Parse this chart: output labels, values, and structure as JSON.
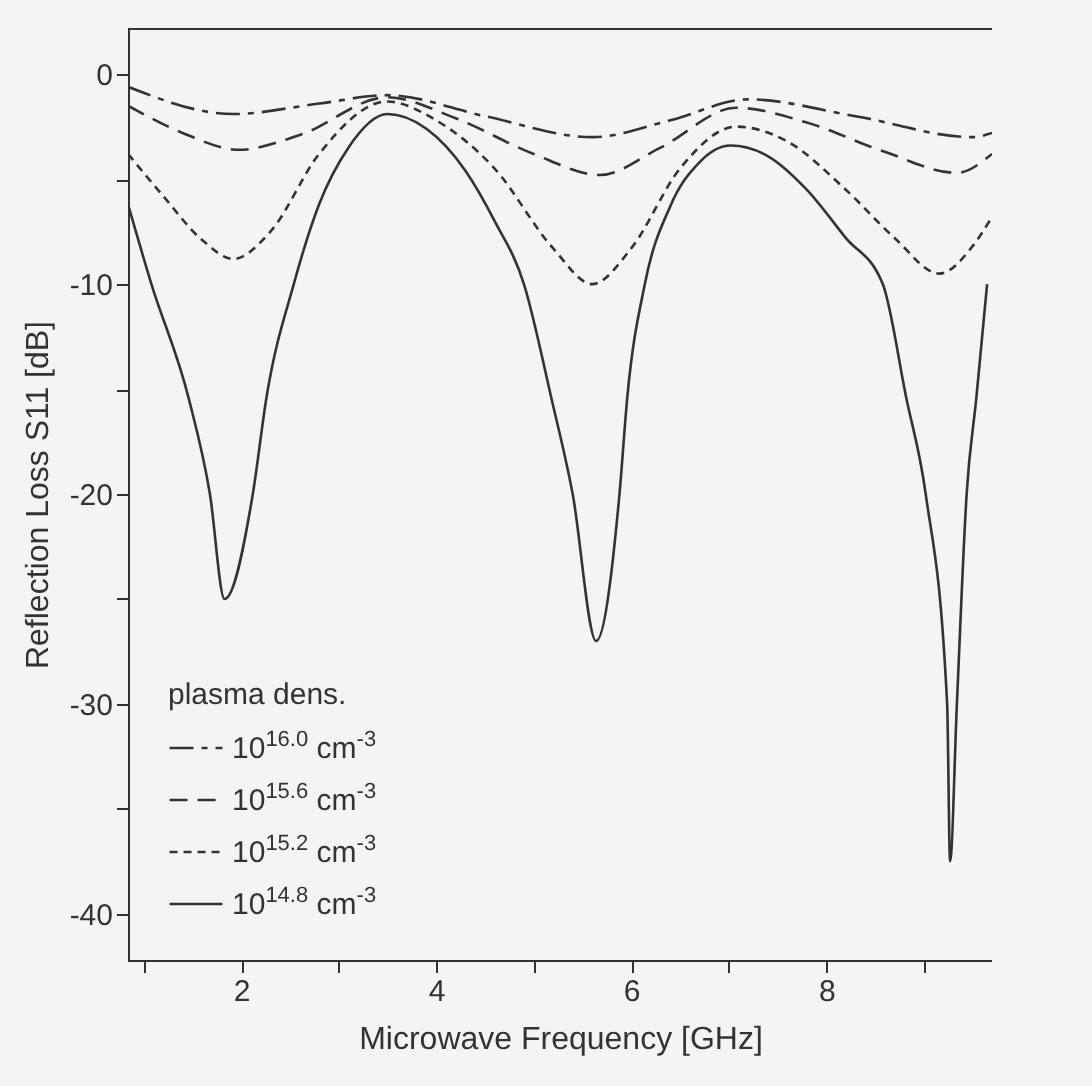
{
  "chart_data": {
    "type": "line",
    "xlabel": "Microwave Frequency [GHz]",
    "ylabel": "Reflection Loss  S11 [dB]",
    "legend_title": "plasma dens.",
    "legend": "bottom left",
    "grid": false,
    "xlim": [
      0.84,
      9.7
    ],
    "ylim": [
      -42.2,
      2.2
    ],
    "xticks": [
      {
        "value": 1,
        "label": null
      },
      2,
      {
        "value": 3,
        "label": null
      },
      4,
      {
        "value": 5,
        "label": null
      },
      6,
      {
        "value": 7,
        "label": null
      },
      8,
      {
        "value": 9,
        "label": null
      }
    ],
    "yticks": [
      -40,
      {
        "value": -35,
        "label": null
      },
      -30,
      {
        "value": -25,
        "label": null
      },
      -20,
      {
        "value": -15,
        "label": null
      },
      -10,
      {
        "value": -5,
        "label": null
      },
      0
    ],
    "series": [
      {
        "name": "10$^{16.0}$ cm$^{-3}$",
        "color": "#333333",
        "line_style": "dashdot",
        "x": [
          0.84,
          1.92,
          2.8,
          3.5,
          4.5,
          5.6,
          6.4,
          7.2,
          8.3,
          9.5,
          9.7
        ],
        "values": [
          -0.6,
          -1.9,
          -1.4,
          -1.0,
          -2.0,
          -3.0,
          -2.2,
          -1.2,
          -2.0,
          -3.0,
          -2.8
        ]
      },
      {
        "name": "10$^{15.6}$ cm$^{-3}$",
        "color": "#333333",
        "line_style": "dashed",
        "x": [
          0.84,
          1.4,
          1.98,
          2.6,
          3.5,
          4.2,
          5.0,
          5.68,
          6.3,
          7.08,
          7.8,
          8.6,
          9.34,
          9.7
        ],
        "values": [
          -1.5,
          -2.8,
          -3.6,
          -2.9,
          -1.1,
          -2.1,
          -3.8,
          -4.8,
          -3.5,
          -1.6,
          -2.3,
          -3.7,
          -4.7,
          -3.8
        ]
      },
      {
        "name": "10$^{15.2}$ cm$^{-3}$",
        "color": "#333333",
        "line_style": "dotted",
        "x": [
          0.84,
          1.2,
          1.6,
          1.92,
          2.3,
          2.8,
          3.5,
          4.0,
          4.6,
          5.2,
          5.6,
          6.0,
          6.5,
          7.08,
          7.6,
          8.2,
          8.7,
          9.16,
          9.5,
          9.7
        ],
        "values": [
          -3.8,
          -5.8,
          -7.9,
          -8.8,
          -7.5,
          -3.8,
          -1.3,
          -2.2,
          -4.5,
          -8.3,
          -10,
          -8.3,
          -4.5,
          -2.5,
          -3.2,
          -5.5,
          -7.8,
          -9.5,
          -8.2,
          -6.8
        ]
      },
      {
        "name": "10$^{14.8}$ cm$^{-3}$",
        "color": "#333333",
        "line_style": "solid",
        "x": [
          0.84,
          1.08,
          1.46,
          1.68,
          1.83,
          2.12,
          2.26,
          2.54,
          2.8,
          3.1,
          3.5,
          3.9,
          4.3,
          4.6,
          4.9,
          5.18,
          5.4,
          5.64,
          5.88,
          5.96,
          6.14,
          6.4,
          6.7,
          7.02,
          7.4,
          7.8,
          8.2,
          8.58,
          8.82,
          9.02,
          9.24,
          9.27,
          9.34,
          9.44,
          9.54,
          9.65
        ],
        "values": [
          -6.2,
          -10,
          -15.4,
          -20,
          -25,
          -20,
          -15.4,
          -10,
          -6.2,
          -3.5,
          -1.9,
          -2.6,
          -4.6,
          -7,
          -10,
          -15.4,
          -20,
          -27,
          -20,
          -15.4,
          -10,
          -6.3,
          -4.2,
          -3.4,
          -3.9,
          -5.5,
          -7.8,
          -10,
          -15.4,
          -20,
          -30,
          -37.5,
          -30,
          -20,
          -15.4,
          -10
        ]
      }
    ]
  }
}
